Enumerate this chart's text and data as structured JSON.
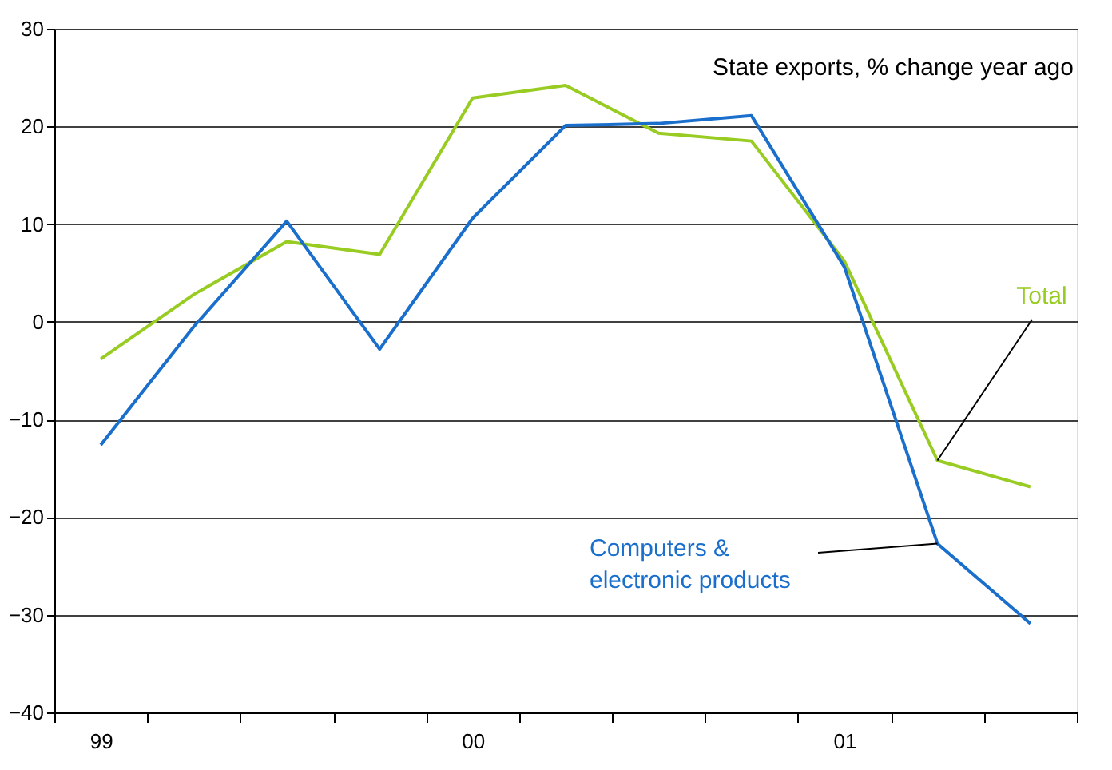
{
  "chart_data": {
    "type": "line",
    "categories": [
      "99",
      null,
      null,
      null,
      "00",
      null,
      null,
      null,
      "01",
      null,
      null
    ],
    "series": [
      {
        "name": "Total",
        "color": "#99cc22",
        "values": [
          -3.8,
          2.8,
          8.2,
          6.9,
          22.9,
          24.2,
          19.3,
          18.5,
          6.2,
          -14.2,
          -16.9
        ]
      },
      {
        "name": "Computers & electronic products",
        "color": "#1a6fcc",
        "values": [
          -12.6,
          -0.5,
          10.3,
          -2.8,
          10.6,
          20.1,
          20.3,
          21.1,
          5.6,
          -22.7,
          -30.9
        ]
      }
    ],
    "annotations": [
      "State exports, % change year ago"
    ],
    "ylim": [
      -40,
      30
    ],
    "yticks": [
      -40,
      -30,
      -20,
      -10,
      0,
      10,
      20,
      30
    ],
    "grid": "y",
    "legend": false,
    "marker": "none",
    "line_style": "solid"
  }
}
